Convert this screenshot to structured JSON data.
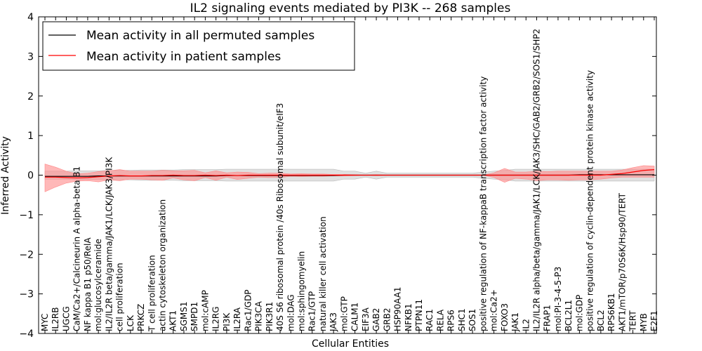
{
  "chart_data": {
    "type": "line",
    "title": "IL2 signaling events mediated by PI3K -- 268 samples",
    "xlabel": "Cellular Entities",
    "ylabel": "Inferred Activity",
    "ylim": [
      -4,
      4
    ],
    "yticks": [
      "−4",
      "−3",
      "−2",
      "−1",
      "0",
      "1",
      "2",
      "3",
      "4"
    ],
    "grid": false,
    "legend_position": "top-left",
    "legend": [
      {
        "label": "Mean activity in all permuted samples",
        "color": "#000000"
      },
      {
        "label": "Mean activity in patient samples",
        "color": "#ff0000"
      }
    ],
    "categories": [
      "MYC",
      "IL2RB",
      "UGCG",
      "CaM/Ca2+/Calcineurin A alpha-beta B1",
      "NF kappa B1 p50/RelA",
      "mol:glucosylceramide",
      "IL2/IL2R beta/gamma/JAK1/LCK/JAK3/PI3K",
      "cell proliferation",
      "LCK",
      "PRKCZ",
      "T cell proliferation",
      "actin cytoskeleton organization",
      "AKT1",
      "SGMS1",
      "SMPD1",
      "mol:cAMP",
      "IL2RG",
      "PI3K",
      "IL2RA",
      "Rac1/GDP",
      "PIK3CA",
      "PIK3R1",
      "40S S6 ribosomal protein /40s Ribosomal subunit/eIF3",
      "mol:DAG",
      "mol:sphingomyelin",
      "Rac1/GTP",
      "natural killer cell activation",
      "JAK3",
      "mol:GTP",
      "CALM1",
      "EIF3A",
      "GAB2",
      "GRB2",
      "HSP90AA1",
      "NFKB1",
      "PTPN11",
      "RAC1",
      "RELA",
      "RPS6",
      "SHC1",
      "SOS1",
      "positive regulation of NF-kappaB transcription factor activity",
      "mol:Ca2+",
      "FOXO3",
      "JAK1",
      "IL2",
      "IL2/IL2R alpha/beta/gamma/JAK1/LCK/JAK3/SHC/GAB2/GRB2/SOS1/SHP2",
      "FRAP1",
      "mol:PI-3-4-5-P3",
      "BCL2L1",
      "mol:GDP",
      "positive regulation of cyclin-dependent protein kinase activity",
      "BCL2",
      "RPS6KB1",
      "AKT1/mTOR/p70S6K/Hsp90/TERT",
      "TERT",
      "MYB",
      "E2F1"
    ],
    "series": [
      {
        "name": "Mean activity in all permuted samples",
        "color": "#000000",
        "band_color": "#bbbbbb",
        "values": [
          -0.03,
          -0.03,
          -0.03,
          -0.03,
          -0.03,
          -0.02,
          -0.02,
          -0.02,
          -0.02,
          -0.02,
          -0.02,
          -0.02,
          -0.02,
          -0.02,
          -0.02,
          -0.02,
          -0.02,
          -0.01,
          -0.01,
          -0.01,
          -0.01,
          -0.01,
          -0.01,
          -0.01,
          -0.01,
          -0.01,
          -0.01,
          -0.01,
          0,
          0,
          0,
          0,
          0,
          0,
          0,
          0,
          0,
          0,
          0,
          0,
          0,
          0,
          0,
          0,
          0,
          0,
          0,
          0,
          0,
          0,
          0.01,
          0.01,
          0.01,
          0.01,
          0.01,
          0.01,
          0.01,
          0.01
        ],
        "lower": [
          -0.1,
          -0.1,
          -0.1,
          -0.11,
          -0.11,
          -0.11,
          -0.12,
          -0.12,
          -0.12,
          -0.13,
          -0.13,
          -0.13,
          -0.13,
          -0.14,
          -0.14,
          -0.14,
          -0.14,
          -0.15,
          -0.15,
          -0.15,
          -0.15,
          -0.15,
          -0.15,
          -0.15,
          -0.15,
          -0.15,
          -0.15,
          -0.15,
          -0.1,
          -0.1,
          -0.05,
          -0.1,
          -0.05,
          -0.05,
          -0.05,
          -0.05,
          -0.05,
          -0.05,
          -0.05,
          -0.05,
          -0.05,
          -0.08,
          -0.1,
          -0.12,
          -0.15,
          -0.15,
          -0.15,
          -0.15,
          -0.15,
          -0.15,
          -0.15,
          -0.15,
          -0.15,
          -0.15,
          -0.15,
          -0.15,
          -0.15,
          -0.15
        ],
        "upper": [
          0.1,
          0.1,
          0.1,
          0.11,
          0.11,
          0.11,
          0.12,
          0.12,
          0.12,
          0.13,
          0.13,
          0.13,
          0.13,
          0.14,
          0.14,
          0.14,
          0.14,
          0.15,
          0.15,
          0.15,
          0.15,
          0.15,
          0.15,
          0.15,
          0.15,
          0.15,
          0.15,
          0.15,
          0.1,
          0.1,
          0.05,
          0.1,
          0.05,
          0.05,
          0.05,
          0.05,
          0.05,
          0.05,
          0.05,
          0.05,
          0.05,
          0.08,
          0.1,
          0.12,
          0.15,
          0.15,
          0.15,
          0.15,
          0.15,
          0.15,
          0.15,
          0.15,
          0.15,
          0.15,
          0.15,
          0.15,
          0.15,
          0.15
        ]
      },
      {
        "name": "Mean activity in patient samples",
        "color": "#ff0000",
        "band_color": "#ff8888",
        "values": [
          -0.05,
          -0.05,
          -0.06,
          -0.07,
          -0.06,
          -0.04,
          -0.02,
          -0.01,
          -0.02,
          -0.02,
          -0.01,
          -0.01,
          0,
          -0.01,
          -0.01,
          0,
          -0.01,
          0,
          -0.01,
          0,
          0,
          0,
          0,
          0,
          0,
          0,
          0,
          0,
          0,
          0,
          0,
          0,
          0,
          0,
          0,
          0,
          0,
          0,
          0,
          0,
          0,
          0,
          0,
          0,
          0,
          0,
          0,
          0,
          0,
          0,
          0,
          0,
          0,
          0.02,
          0.04,
          0.08,
          0.12,
          0.14
        ],
        "lower": [
          -0.42,
          -0.3,
          -0.2,
          -0.15,
          -0.14,
          -0.17,
          -0.12,
          -0.14,
          -0.1,
          -0.1,
          -0.12,
          -0.13,
          -0.07,
          -0.12,
          -0.14,
          -0.06,
          -0.13,
          -0.05,
          -0.11,
          -0.08,
          -0.05,
          -0.06,
          -0.06,
          -0.03,
          -0.04,
          -0.03,
          -0.03,
          -0.02,
          -0.02,
          -0.01,
          0,
          -0.01,
          0,
          0,
          0,
          0,
          0,
          0,
          0,
          0,
          0,
          0,
          -0.06,
          -0.18,
          -0.08,
          -0.1,
          -0.14,
          -0.12,
          -0.12,
          -0.13,
          -0.12,
          -0.12,
          -0.1,
          -0.07,
          -0.05,
          -0.05,
          -0.05,
          -0.05
        ],
        "upper": [
          0.28,
          0.2,
          0.1,
          0.03,
          0.05,
          0.09,
          0.11,
          0.14,
          0.1,
          0.1,
          0.1,
          0.12,
          0.11,
          0.11,
          0.12,
          0.06,
          0.11,
          0.06,
          0.08,
          0.07,
          0.04,
          0.05,
          0.05,
          0.03,
          0.04,
          0.03,
          0.03,
          0.02,
          0.02,
          0.01,
          0,
          0.01,
          0,
          0,
          0,
          0,
          0,
          0,
          0,
          0,
          0,
          0,
          0.06,
          0.17,
          0.08,
          0.08,
          0.1,
          0.09,
          0.1,
          0.1,
          0.1,
          0.1,
          0.1,
          0.1,
          0.13,
          0.19,
          0.24,
          0.23
        ]
      }
    ]
  }
}
